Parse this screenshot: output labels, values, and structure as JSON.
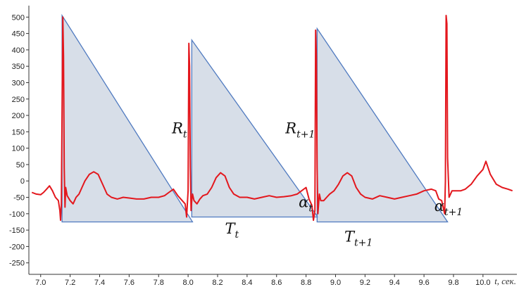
{
  "chart_data": {
    "type": "line",
    "xlabel": "t, сек.",
    "ylabel": "",
    "title": "",
    "xlim": [
      6.92,
      10.23
    ],
    "ylim": [
      -285,
      535
    ],
    "x_ticks": [
      "7.0",
      "7.2",
      "7.4",
      "7.6",
      "7.8",
      "8.0",
      "8.2",
      "8.4",
      "8.6",
      "8.8",
      "9.0",
      "9.2",
      "9.4",
      "9.6",
      "9.8",
      "10.0"
    ],
    "y_ticks": [
      "500",
      "450",
      "400",
      "350",
      "300",
      "250",
      "200",
      "150",
      "100",
      "50",
      "0",
      "-50",
      "-100",
      "-150",
      "-200",
      "-250"
    ],
    "grid": false,
    "legend": "none",
    "colors": {
      "ecg": "#e3171d",
      "triangle_fill": "#cdd6e2",
      "triangle_edge": "#4f7ac0",
      "axis": "#333333"
    },
    "series": [
      {
        "x": [
          6.94,
          6.97,
          7.0,
          7.02,
          7.04,
          7.06,
          7.08,
          7.1,
          7.12,
          7.13,
          7.135,
          7.14,
          7.15,
          7.155,
          7.16,
          7.165,
          7.17,
          7.18,
          7.2,
          7.22,
          7.24,
          7.26,
          7.28,
          7.3,
          7.33,
          7.36,
          7.39,
          7.42,
          7.45,
          7.48,
          7.52,
          7.56,
          7.6,
          7.65,
          7.7,
          7.75,
          7.8,
          7.84,
          7.87,
          7.9,
          7.93,
          7.96,
          7.98,
          7.99,
          8.0,
          8.005,
          8.01,
          8.015,
          8.02,
          8.025,
          8.03,
          8.04,
          8.06,
          8.08,
          8.1,
          8.13,
          8.16,
          8.19,
          8.22,
          8.25,
          8.28,
          8.31,
          8.35,
          8.4,
          8.45,
          8.5,
          8.55,
          8.6,
          8.65,
          8.7,
          8.74,
          8.77,
          8.8,
          8.82,
          8.84,
          8.85,
          8.86,
          8.865,
          8.87,
          8.875,
          8.88,
          8.885,
          8.89,
          8.9,
          8.92,
          8.94,
          8.96,
          8.99,
          9.02,
          9.05,
          9.08,
          9.11,
          9.14,
          9.17,
          9.2,
          9.25,
          9.3,
          9.35,
          9.4,
          9.45,
          9.5,
          9.55,
          9.6,
          9.65,
          9.68,
          9.7,
          9.72,
          9.73,
          9.74,
          9.745,
          9.75,
          9.755,
          9.76,
          9.77,
          9.79,
          9.82,
          9.85,
          9.88,
          9.92,
          9.96,
          10.0,
          10.02,
          10.05,
          10.09,
          10.13,
          10.17,
          10.2
        ],
        "y": [
          -35,
          -40,
          -42,
          -35,
          -25,
          -15,
          -30,
          -50,
          -60,
          -90,
          -120,
          -70,
          500,
          380,
          40,
          -80,
          -20,
          -45,
          -60,
          -70,
          -50,
          -40,
          -20,
          0,
          20,
          28,
          20,
          -10,
          -40,
          -50,
          -55,
          -50,
          -52,
          -55,
          -55,
          -50,
          -50,
          -45,
          -35,
          -25,
          -45,
          -60,
          -70,
          -110,
          -30,
          420,
          350,
          40,
          -90,
          -60,
          -40,
          -60,
          -70,
          -55,
          -45,
          -40,
          -20,
          10,
          25,
          15,
          -20,
          -40,
          -50,
          -50,
          -55,
          -50,
          -45,
          -50,
          -48,
          -45,
          -40,
          -30,
          -20,
          -55,
          -75,
          -120,
          -90,
          460,
          380,
          40,
          -100,
          -70,
          -40,
          -60,
          -60,
          -50,
          -40,
          -30,
          -10,
          15,
          25,
          15,
          -20,
          -40,
          -50,
          -55,
          -45,
          -50,
          -55,
          -50,
          -45,
          -40,
          -30,
          -25,
          -30,
          -55,
          -60,
          -80,
          -100,
          0,
          505,
          480,
          70,
          -50,
          -30,
          -30,
          -30,
          -25,
          -10,
          15,
          35,
          60,
          20,
          -10,
          -20,
          -25,
          -30
        ]
      }
    ],
    "annotations": [
      {
        "base": "R",
        "sub": "t",
        "x": 7.89,
        "y": 145
      },
      {
        "base": "R",
        "sub": "t+1",
        "x": 8.66,
        "y": 145
      },
      {
        "base": "T",
        "sub": "t",
        "x": 8.25,
        "y": -160
      },
      {
        "base": "T",
        "sub": "t+1",
        "x": 9.06,
        "y": -185
      },
      {
        "base": "α",
        "sub": "t",
        "x": 8.75,
        "y": -80
      },
      {
        "base": "α",
        "sub": "t+1",
        "x": 9.67,
        "y": -92
      }
    ],
    "triangles": [
      {
        "peak_x": 7.145,
        "peak_y": 505,
        "base_x_end": 8.03,
        "base_y": -125
      },
      {
        "peak_x": 8.025,
        "peak_y": 430,
        "base_x_end": 8.88,
        "base_y": -110
      },
      {
        "peak_x": 8.875,
        "peak_y": 465,
        "base_x_end": 9.76,
        "base_y": -125
      }
    ]
  }
}
